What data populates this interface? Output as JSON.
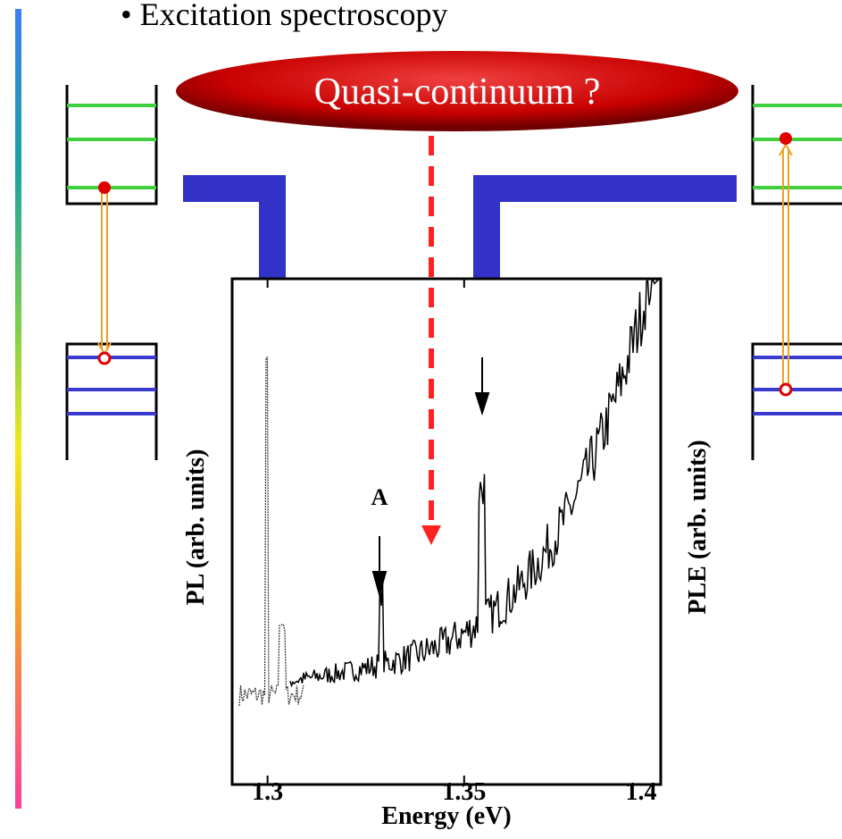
{
  "bullet": "• Excitation spectroscopy",
  "callout": "Quasi-continuum ?",
  "plot": {
    "xlabel": "Energy (eV)",
    "ylabel_left": "PL (arb. units)",
    "ylabel_right": "PLE (arb. units)",
    "annotation": "A",
    "xlim": [
      1.291,
      1.4
    ],
    "xticks": [
      1.3,
      1.35,
      1.4
    ]
  }
}
